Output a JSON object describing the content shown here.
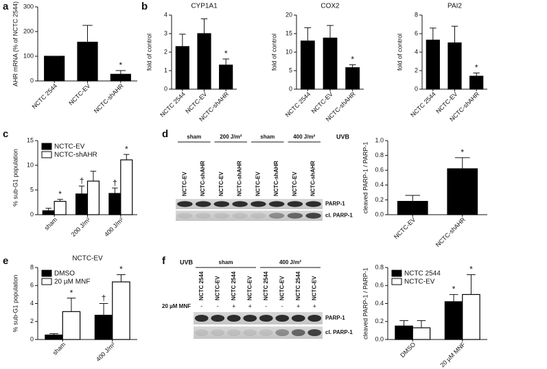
{
  "panel_labels": [
    "a",
    "b",
    "c",
    "d",
    "e",
    "f"
  ],
  "chart_data": [
    {
      "type": "bar",
      "ylabel": "AHR mRNA (% of NCTC 2544)",
      "categories": [
        "NCTC 2544",
        "NCTC-EV",
        "NCTC-shAHR"
      ],
      "values": [
        100,
        157,
        27
      ],
      "errors": [
        0,
        68,
        15
      ],
      "annotations": [
        null,
        null,
        "*"
      ],
      "color": "#000000",
      "ylim": [
        0,
        300
      ],
      "yticks": [
        0,
        100,
        200,
        300
      ]
    },
    {
      "type": "bar",
      "title": "CYP1A1",
      "ylabel": "fold of control",
      "categories": [
        "NCTC 2544",
        "NCTC-EV",
        "NCTC-shAHR"
      ],
      "values": [
        2.3,
        3.0,
        1.3
      ],
      "errors": [
        0.67,
        0.8,
        0.33
      ],
      "annotations": [
        null,
        null,
        "*"
      ],
      "color": "#000000",
      "ylim": [
        0,
        4
      ],
      "yticks": [
        0,
        1,
        2,
        3,
        4
      ]
    },
    {
      "type": "bar",
      "title": "COX2",
      "ylabel": "fold of control",
      "categories": [
        "NCTC 2544",
        "NCTC-EV",
        "NCTC-shAHR"
      ],
      "values": [
        13,
        13.8,
        5.8
      ],
      "errors": [
        3.6,
        3.4,
        0.8
      ],
      "annotations": [
        null,
        null,
        "*"
      ],
      "color": "#000000",
      "ylim": [
        0,
        20
      ],
      "yticks": [
        0,
        5,
        10,
        15,
        20
      ]
    },
    {
      "type": "bar",
      "title": "PAI2",
      "ylabel": "fold of control",
      "categories": [
        "NCTC 2544",
        "NCTC-EV",
        "NCTC-shAHR"
      ],
      "values": [
        5.3,
        5.0,
        1.4
      ],
      "errors": [
        1.3,
        1.8,
        0.35
      ],
      "annotations": [
        null,
        null,
        "*"
      ],
      "color": "#000000",
      "ylim": [
        0,
        8
      ],
      "yticks": [
        0,
        2,
        4,
        6,
        8
      ]
    },
    {
      "type": "bar",
      "ylabel": "% sub-G1 population",
      "categories": [
        "sham",
        "200 J/m²",
        "400 J/m²"
      ],
      "legend": "upper left",
      "ylim": [
        0,
        15
      ],
      "yticks": [
        0,
        5,
        10,
        15
      ],
      "series": [
        {
          "name": "NCTC-EV",
          "color": "#000000",
          "values": [
            0.8,
            4.2,
            4.3
          ],
          "errors": [
            0.5,
            1.6,
            1.1
          ],
          "annotations": [
            null,
            "†",
            "†"
          ]
        },
        {
          "name": "NCTC-shAHR",
          "color": "#ffffff",
          "values": [
            2.7,
            6.8,
            11.1
          ],
          "errors": [
            0.4,
            2.0,
            1.1
          ],
          "annotations": [
            "*",
            null,
            "*"
          ]
        }
      ]
    },
    {
      "type": "bar",
      "ylabel": "cleaved PARP-1 / PARP-1",
      "categories": [
        "NCTC-EV",
        "NCTC-shAHR"
      ],
      "values": [
        0.18,
        0.62
      ],
      "errors": [
        0.08,
        0.15
      ],
      "annotations": [
        null,
        "*"
      ],
      "color": "#000000",
      "ylim": [
        0,
        1
      ],
      "yticks": [
        {
          "value": 0,
          "label": "0.0"
        },
        0.2,
        0.4,
        0.6,
        0.8,
        {
          "value": 1,
          "label": "1.0"
        }
      ]
    },
    {
      "type": "bar",
      "title": "NCTC-EV",
      "ylabel": "% sub-G1 population",
      "categories": [
        "sham",
        "400 J/m²"
      ],
      "legend": "upper left",
      "ylim": [
        0,
        8
      ],
      "yticks": [
        0,
        2,
        4,
        6,
        8
      ],
      "series": [
        {
          "name": "DMSO",
          "color": "#000000",
          "values": [
            0.5,
            2.7
          ],
          "errors": [
            0.15,
            1.3
          ],
          "annotations": [
            null,
            "†"
          ]
        },
        {
          "name": "20 µM MNF",
          "color": "#ffffff",
          "values": [
            3.1,
            6.4
          ],
          "errors": [
            1.5,
            0.8
          ],
          "annotations": [
            "*",
            "*"
          ]
        }
      ]
    },
    {
      "type": "bar",
      "ylabel": "cleaved PARP-1 / PARP-1",
      "categories": [
        "DMSO",
        "20 µM MNF"
      ],
      "legend": "upper left",
      "ylim": [
        0,
        0.8
      ],
      "yticks": [
        {
          "value": 0,
          "label": "0.0"
        },
        0.2,
        0.4,
        0.6,
        0.8
      ],
      "series": [
        {
          "name": "NCTC 2544",
          "color": "#000000",
          "values": [
            0.15,
            0.42
          ],
          "errors": [
            0.06,
            0.08
          ],
          "annotations": [
            null,
            "*"
          ]
        },
        {
          "name": "NCTC-EV",
          "color": "#ffffff",
          "values": [
            0.13,
            0.5
          ],
          "errors": [
            0.08,
            0.22
          ],
          "annotations": [
            null,
            "*"
          ]
        }
      ]
    }
  ],
  "blots": [
    {
      "treatment": "UVB",
      "groups": [
        "sham",
        "200 J/m²",
        "sham",
        "400 J/m²"
      ],
      "lanes": [
        "NCTC-EV",
        "NCTC-shAHR",
        "NCTC-EV",
        "NCTC-shAHR",
        "NCTC-EV",
        "NCTC-shAHR",
        "NCTC-EV",
        "NCTC-shAHR"
      ],
      "bands": [
        "PARP-1",
        "cl. PARP-1"
      ]
    },
    {
      "treatment": "UVB",
      "groups": [
        "sham",
        "400 J/m²"
      ],
      "lanes": [
        "NCTC 2544",
        "NCTC-EV",
        "NCTC 2544",
        "NCTC-EV",
        "NCTC 2544",
        "NCTC-EV",
        "NCTC 2544",
        "NCTC-EV"
      ],
      "row_label": "20 µM MNF",
      "row": [
        "-",
        "-",
        "+",
        "+",
        "-",
        "-",
        "+",
        "+"
      ],
      "bands": [
        "PARP-1",
        "cl. PARP-1"
      ]
    }
  ]
}
